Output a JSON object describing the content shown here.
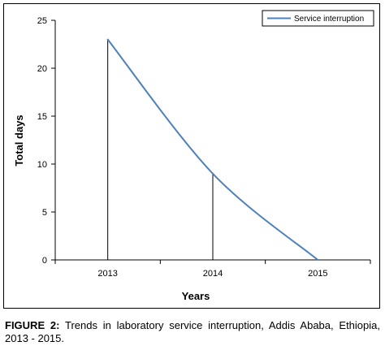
{
  "figure": {
    "caption_label": "FIGURE 2:",
    "caption_text": "Trends in laboratory service interruption, Addis Ababa, Ethiopia, 2013 - 2015."
  },
  "colors": {
    "series_line": "#4F81BD",
    "axis": "#000000",
    "drop_lines": "#000000"
  },
  "chart_data": {
    "type": "line",
    "title": "",
    "xlabel": "Years",
    "ylabel": "Total days",
    "categories": [
      "2013",
      "2014",
      "2015"
    ],
    "ylim": [
      0,
      25
    ],
    "yticks": [
      0,
      5,
      10,
      15,
      20,
      25
    ],
    "grid": false,
    "smooth": true,
    "drop_lines": true,
    "legend_position": "top-right",
    "series": [
      {
        "name": "Service interruption",
        "values": [
          23,
          9,
          0
        ]
      }
    ]
  }
}
